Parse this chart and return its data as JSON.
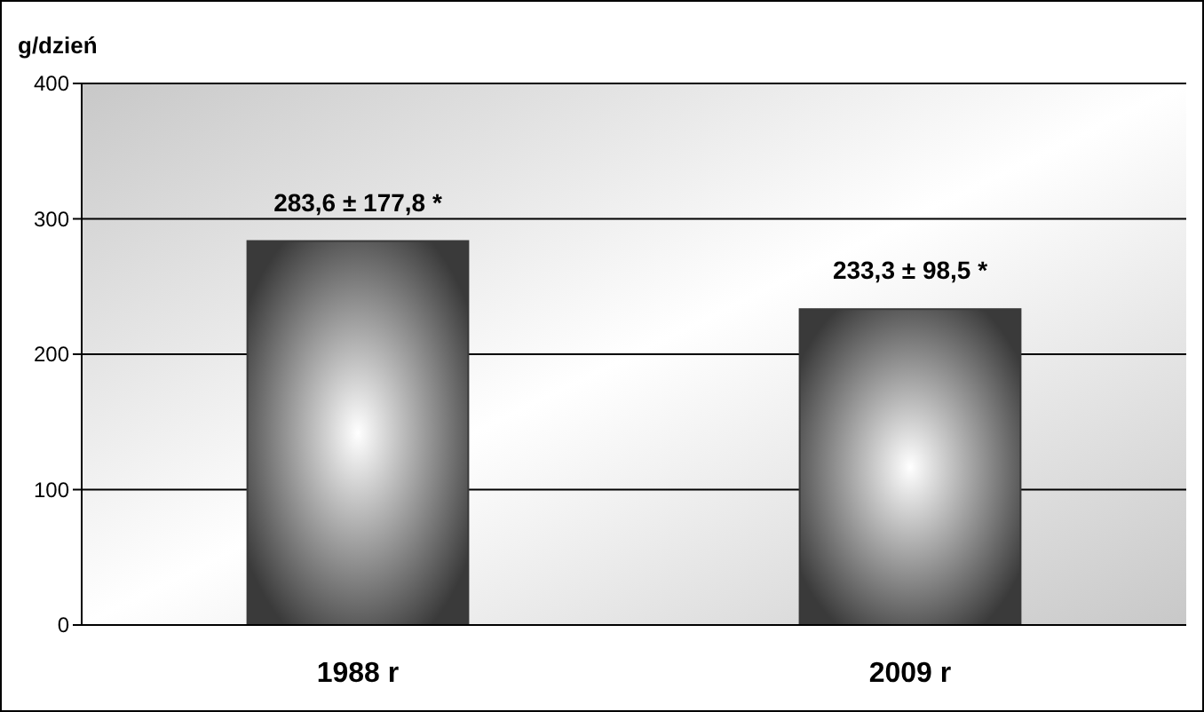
{
  "chart_data": {
    "type": "bar",
    "ylabel": "g/dzień",
    "categories": [
      "1988 r",
      "2009 r"
    ],
    "values": [
      283.6,
      233.3
    ],
    "value_labels": [
      "283,6 ± 177,8 *",
      "233,3 ± 98,5 *"
    ],
    "color": "#3a3a3a",
    "ylim": [
      0,
      400
    ],
    "yticks": [
      0,
      100,
      200,
      300,
      400
    ],
    "grid": "y"
  }
}
